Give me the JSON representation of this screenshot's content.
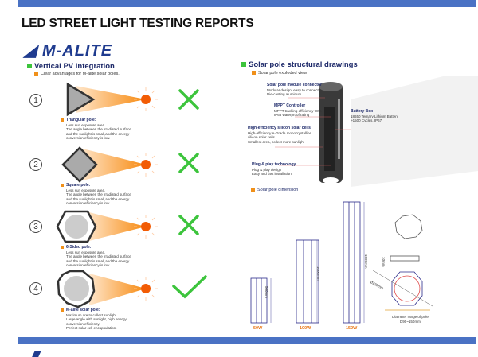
{
  "header": {
    "title": "LED STREET LIGHT TESTING REPORTS",
    "logo": "M-ALITE"
  },
  "left": {
    "heading": "Vertical PV integration",
    "subheading": "Clear advantages for M-alite solar poles.",
    "items": [
      {
        "num": "1",
        "title": "Triangular pole:",
        "lines": [
          "Less sun exposure area.",
          "The angle between the irradiated surface",
          "and the sunlight is small,and the energy",
          "conversion efficiency is low."
        ],
        "verdict": "cross"
      },
      {
        "num": "2",
        "title": "Square pole:",
        "lines": [
          "Less sun exposure area.",
          "The angle between the irradiated surface",
          "and the sunlight is small,and the energy",
          "conversion efficiency is low."
        ],
        "verdict": "cross"
      },
      {
        "num": "3",
        "title": "6-Sided pole:",
        "lines": [
          "Less sun exposure area.",
          "The angle between the irradiated surface",
          "and the sunlight is small,and the energy",
          "conversion efficiency is low."
        ],
        "verdict": "cross"
      },
      {
        "num": "4",
        "title": "M-alite solar pole:",
        "lines": [
          "Maximum are to collect sunlight.",
          "Large angle with sunlight, high energy",
          "conversion efficiency.",
          "Perfect solar cell encapsulation."
        ],
        "verdict": "check"
      }
    ]
  },
  "right": {
    "heading": "Solar pole structural drawings",
    "exploded_label": "Solar pole exploded view",
    "callouts": [
      {
        "title": "Solar pole module connector",
        "lines": [
          "Modular design, easy to connect",
          "Die-casting aluminum"
        ]
      },
      {
        "title": "MPPT Controller",
        "lines": [
          "MPPT tracking efficiency 98%",
          "IP68 waterproof rating"
        ]
      },
      {
        "title": "Battery Box",
        "lines": [
          "18650 Ternary Lithium Battery",
          ">1500 Cycles, IP67"
        ]
      },
      {
        "title": "High-efficiency silicon solar cells",
        "lines": [
          "High-efficiency A-Grade monocrystalline",
          "silicon solar cells",
          "Smallest area, collect more sunlight"
        ]
      },
      {
        "title": "Plug & play technology",
        "lines": [
          "Plug & play design",
          "Easy and fast installation"
        ]
      }
    ],
    "dimension_label": "Solar pole dimension",
    "poles": [
      {
        "watt": "50W",
        "height": "500mm"
      },
      {
        "watt": "100W",
        "height": "1000mm"
      },
      {
        "watt": "150W",
        "height": "1500mm"
      }
    ],
    "section_height": "10mm",
    "diameter_label": "Ø220mm",
    "diameter_note": [
      "Diameter range of pole",
      "D90~150mm"
    ]
  },
  "colors": {
    "bar": "#4a72c4",
    "green": "#3cc43c",
    "orange": "#f07a10",
    "navy": "#1e2a6a"
  }
}
